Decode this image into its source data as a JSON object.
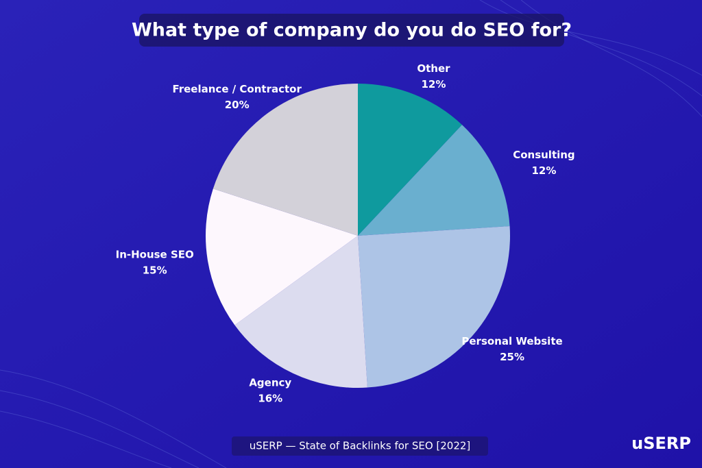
{
  "chart_data": {
    "type": "pie",
    "title": "What type of company do you do SEO for?",
    "categories": [
      "Other",
      "Consulting",
      "Personal Website",
      "Agency",
      "In-House SEO",
      "Freelance / Contractor"
    ],
    "values": [
      12,
      12,
      25,
      16,
      15,
      20
    ],
    "value_labels": [
      "12%",
      "12%",
      "25%",
      "16%",
      "15%",
      "20%"
    ],
    "colors": [
      "#0f9a9e",
      "#6aafcf",
      "#adc4e6",
      "#dcdcef",
      "#fdf7fd",
      "#d3d1d9"
    ],
    "start_angle": 0,
    "direction": "clockwise",
    "source": "uSERP — State of Backlinks for SEO [2022]",
    "brand": "uSERP"
  }
}
